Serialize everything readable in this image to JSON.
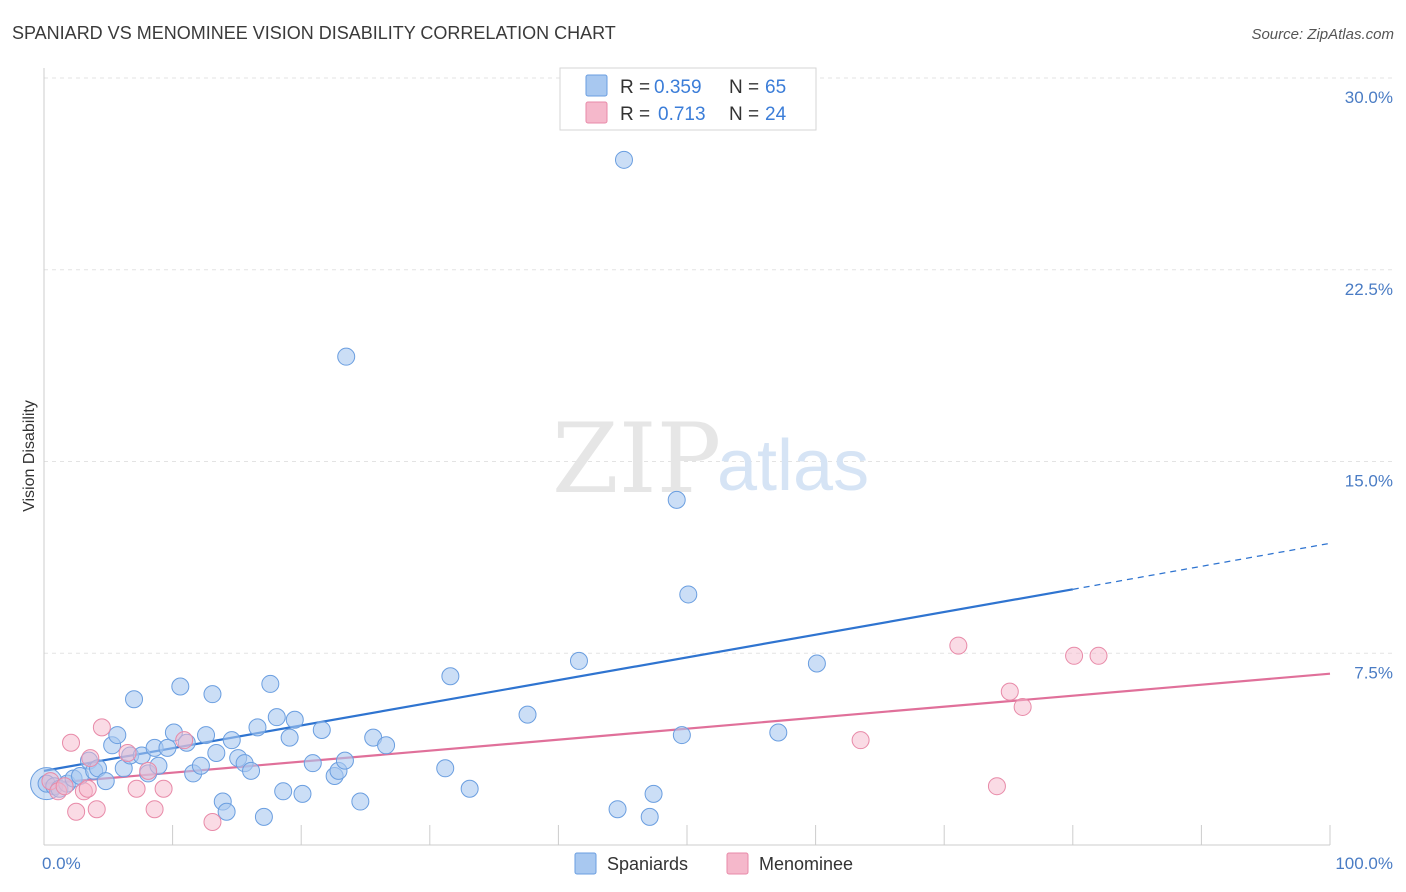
{
  "title": "SPANIARD VS MENOMINEE VISION DISABILITY CORRELATION CHART",
  "source": "Source: ZipAtlas.com",
  "watermark": {
    "zip": "ZIP",
    "atlas": "atlas"
  },
  "colors": {
    "spaniards_fill": "#a8c8f0",
    "spaniards_stroke": "#6a9ee0",
    "spaniards_line": "#2f74d0",
    "menominee_fill": "#f5b8cb",
    "menominee_stroke": "#e88aa8",
    "menominee_line": "#e0709a",
    "grid": "#e3e3e3",
    "tick_text": "#4a7cc4"
  },
  "legend": {
    "rows": [
      {
        "r_label": "R =",
        "r_value": "0.359",
        "n_label": "N =",
        "n_value": "65"
      },
      {
        "r_label": "R =",
        "r_value": "0.713",
        "n_label": "N =",
        "n_value": "24"
      }
    ]
  },
  "chart_data": {
    "type": "scatter",
    "title": "SPANIARD VS MENOMINEE VISION DISABILITY CORRELATION CHART",
    "xlabel": "",
    "ylabel": "Vision Disability",
    "xlim": [
      0,
      100
    ],
    "ylim": [
      0,
      30
    ],
    "x_tick_labels": [
      "0.0%",
      "100.0%"
    ],
    "y_ticks": [
      7.5,
      15.0,
      22.5,
      30.0
    ],
    "y_tick_labels": [
      "7.5%",
      "15.0%",
      "22.5%",
      "30.0%"
    ],
    "grid": true,
    "legend_position": "top-center",
    "series": [
      {
        "name": "Spaniards",
        "r": 0.359,
        "n": 65,
        "trend": {
          "x0": 0,
          "y0": 2.9,
          "x1": 80,
          "y1": 10.0,
          "x_dash_end": 100,
          "y_dash_end": 11.8
        },
        "points": [
          [
            0.2,
            2.4
          ],
          [
            0.8,
            2.3
          ],
          [
            1.2,
            2.2
          ],
          [
            1.8,
            2.4
          ],
          [
            2.3,
            2.6
          ],
          [
            2.8,
            2.7
          ],
          [
            3.5,
            3.3
          ],
          [
            3.9,
            2.9
          ],
          [
            4.2,
            3.0
          ],
          [
            4.8,
            2.5
          ],
          [
            5.3,
            3.9
          ],
          [
            5.7,
            4.3
          ],
          [
            6.2,
            3.0
          ],
          [
            6.7,
            3.5
          ],
          [
            7.0,
            5.7
          ],
          [
            7.6,
            3.5
          ],
          [
            8.1,
            2.8
          ],
          [
            8.6,
            3.8
          ],
          [
            8.9,
            3.1
          ],
          [
            9.6,
            3.8
          ],
          [
            10.1,
            4.4
          ],
          [
            10.6,
            6.2
          ],
          [
            11.1,
            4.0
          ],
          [
            11.6,
            2.8
          ],
          [
            12.2,
            3.1
          ],
          [
            12.6,
            4.3
          ],
          [
            13.1,
            5.9
          ],
          [
            13.4,
            3.6
          ],
          [
            13.9,
            1.7
          ],
          [
            14.2,
            1.3
          ],
          [
            14.6,
            4.1
          ],
          [
            15.1,
            3.4
          ],
          [
            15.6,
            3.2
          ],
          [
            16.1,
            2.9
          ],
          [
            16.6,
            4.6
          ],
          [
            17.1,
            1.1
          ],
          [
            17.6,
            6.3
          ],
          [
            18.1,
            5.0
          ],
          [
            18.6,
            2.1
          ],
          [
            19.1,
            4.2
          ],
          [
            19.5,
            4.9
          ],
          [
            20.1,
            2.0
          ],
          [
            20.9,
            3.2
          ],
          [
            21.6,
            4.5
          ],
          [
            22.6,
            2.7
          ],
          [
            22.9,
            2.9
          ],
          [
            23.4,
            3.3
          ],
          [
            23.5,
            19.1
          ],
          [
            24.6,
            1.7
          ],
          [
            25.6,
            4.2
          ],
          [
            26.6,
            3.9
          ],
          [
            31.2,
            3.0
          ],
          [
            31.6,
            6.6
          ],
          [
            33.1,
            2.2
          ],
          [
            37.6,
            5.1
          ],
          [
            41.6,
            7.2
          ],
          [
            44.6,
            1.4
          ],
          [
            45.1,
            26.8
          ],
          [
            47.1,
            1.1
          ],
          [
            47.4,
            2.0
          ],
          [
            49.2,
            13.5
          ],
          [
            49.6,
            4.3
          ],
          [
            50.1,
            9.8
          ],
          [
            57.1,
            4.4
          ],
          [
            60.1,
            7.1
          ]
        ]
      },
      {
        "name": "Menominee",
        "r": 0.713,
        "n": 24,
        "trend": {
          "x0": 0,
          "y0": 2.4,
          "x1": 100,
          "y1": 6.7
        },
        "points": [
          [
            0.5,
            2.5
          ],
          [
            1.1,
            2.1
          ],
          [
            1.6,
            2.3
          ],
          [
            2.1,
            4.0
          ],
          [
            2.5,
            1.3
          ],
          [
            3.1,
            2.1
          ],
          [
            3.4,
            2.2
          ],
          [
            3.6,
            3.4
          ],
          [
            4.1,
            1.4
          ],
          [
            4.5,
            4.6
          ],
          [
            6.5,
            3.6
          ],
          [
            7.2,
            2.2
          ],
          [
            8.1,
            2.9
          ],
          [
            8.6,
            1.4
          ],
          [
            9.3,
            2.2
          ],
          [
            10.9,
            4.1
          ],
          [
            13.1,
            0.9
          ],
          [
            63.5,
            4.1
          ],
          [
            71.1,
            7.8
          ],
          [
            74.1,
            2.3
          ],
          [
            75.1,
            6.0
          ],
          [
            76.1,
            5.4
          ],
          [
            80.1,
            7.4
          ],
          [
            82.0,
            7.4
          ]
        ]
      }
    ]
  },
  "bottom_legend": {
    "items": [
      {
        "label": "Spaniards"
      },
      {
        "label": "Menominee"
      }
    ]
  }
}
